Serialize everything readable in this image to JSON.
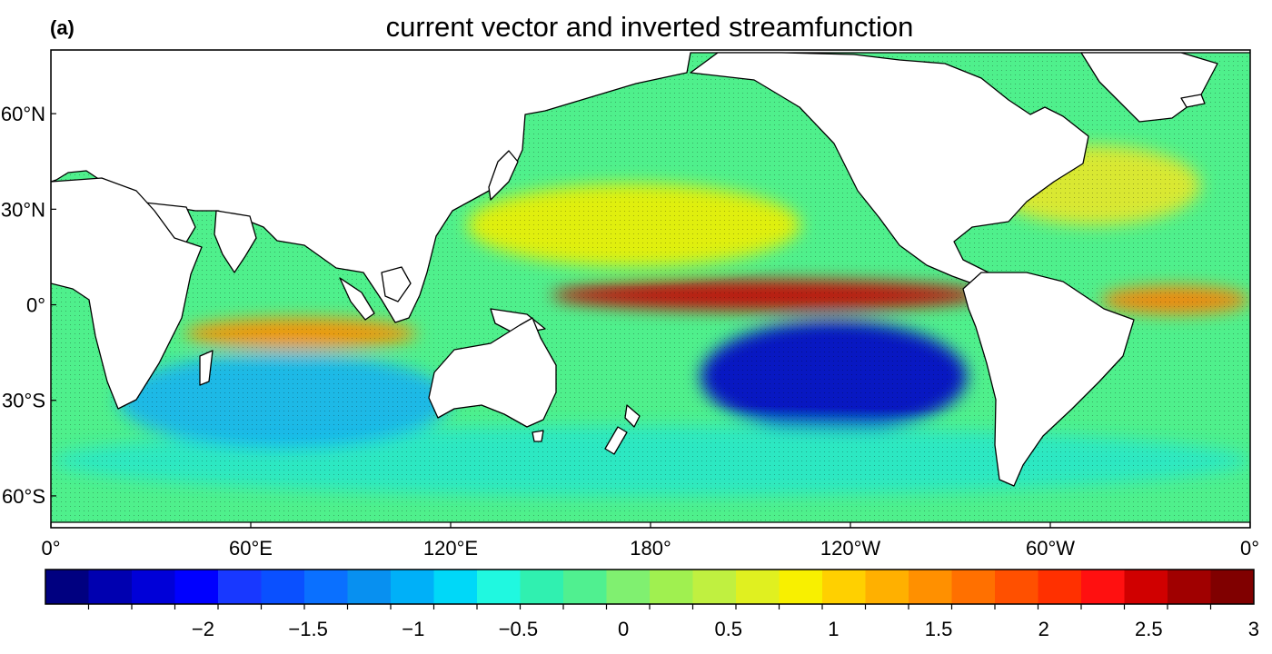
{
  "panel_label": "(a)",
  "title": "current vector and inverted streamfunction",
  "map": {
    "projection": "cylindrical equidistant",
    "lon_range": [
      0,
      360
    ],
    "lat_range": [
      -70,
      80
    ],
    "lat_ticks": [
      {
        "value": 60,
        "label": "60°N"
      },
      {
        "value": 30,
        "label": "30°N"
      },
      {
        "value": 0,
        "label": "0°"
      },
      {
        "value": -30,
        "label": "30°S"
      },
      {
        "value": -60,
        "label": "60°S"
      }
    ],
    "lon_ticks": [
      {
        "value": 0,
        "label": "0°"
      },
      {
        "value": 60,
        "label": "60°E"
      },
      {
        "value": 120,
        "label": "120°E"
      },
      {
        "value": 180,
        "label": "180°"
      },
      {
        "value": 240,
        "label": "120°W"
      },
      {
        "value": 300,
        "label": "60°W"
      },
      {
        "value": 360,
        "label": "0°"
      }
    ],
    "ocean_background_color": "#4ff08c",
    "land_color": "#ffffff",
    "features": [
      {
        "name": "pacific-equatorial-maximum",
        "lon": [
          150,
          280
        ],
        "lat": [
          -2,
          8
        ],
        "value": 2.7,
        "color": "#c80000"
      },
      {
        "name": "north-pacific-subtropical-high",
        "lon": [
          125,
          225
        ],
        "lat": [
          12,
          38
        ],
        "value": 1.1,
        "color": "#f0f000"
      },
      {
        "name": "south-pacific-minimum",
        "lon": [
          195,
          275
        ],
        "lat": [
          -40,
          -5
        ],
        "value": -2.3,
        "color": "#0000c8"
      },
      {
        "name": "south-indian-band",
        "lon": [
          40,
          110
        ],
        "lat": [
          -14,
          -4
        ],
        "value": 1.6,
        "color": "#ff9000"
      },
      {
        "name": "north-atlantic-band",
        "lon": [
          282,
          345
        ],
        "lat": [
          25,
          50
        ],
        "value": 1.0,
        "color": "#e8e828"
      },
      {
        "name": "equatorial-atlantic-band",
        "lon": [
          315,
          360
        ],
        "lat": [
          -3,
          6
        ],
        "value": 1.8,
        "color": "#ff8000"
      },
      {
        "name": "southern-ocean-band",
        "lon": [
          0,
          360
        ],
        "lat": [
          -60,
          -38
        ],
        "value": -0.4,
        "color": "#28e8c8"
      },
      {
        "name": "south-atlantic-southern-indian",
        "lon": [
          20,
          120
        ],
        "lat": [
          -45,
          -15
        ],
        "value": -0.8,
        "color": "#14b4f0"
      }
    ]
  },
  "colorbar": {
    "min": -2.5,
    "max": 3,
    "step": 0.25,
    "colors": [
      "#000080",
      "#0000b0",
      "#0000d8",
      "#0000ff",
      "#1838ff",
      "#0a50ff",
      "#0a70ff",
      "#0890f0",
      "#00b0f8",
      "#00d8f8",
      "#20f8e0",
      "#30f0b0",
      "#50f090",
      "#80f070",
      "#a0f050",
      "#c0f040",
      "#e0f020",
      "#f8f000",
      "#ffd000",
      "#ffb000",
      "#ff9000",
      "#ff7000",
      "#ff5000",
      "#ff3000",
      "#ff1010",
      "#d00000",
      "#a00000",
      "#800000"
    ],
    "tick_labels": [
      {
        "value": -2,
        "label": "−2"
      },
      {
        "value": -1.5,
        "label": "−1.5"
      },
      {
        "value": -1,
        "label": "−1"
      },
      {
        "value": -0.5,
        "label": "−0.5"
      },
      {
        "value": 0,
        "label": "0"
      },
      {
        "value": 0.5,
        "label": "0.5"
      },
      {
        "value": 1,
        "label": "1"
      },
      {
        "value": 1.5,
        "label": "1.5"
      },
      {
        "value": 2,
        "label": "2"
      },
      {
        "value": 2.5,
        "label": "2.5"
      },
      {
        "value": 3,
        "label": "3"
      }
    ]
  }
}
